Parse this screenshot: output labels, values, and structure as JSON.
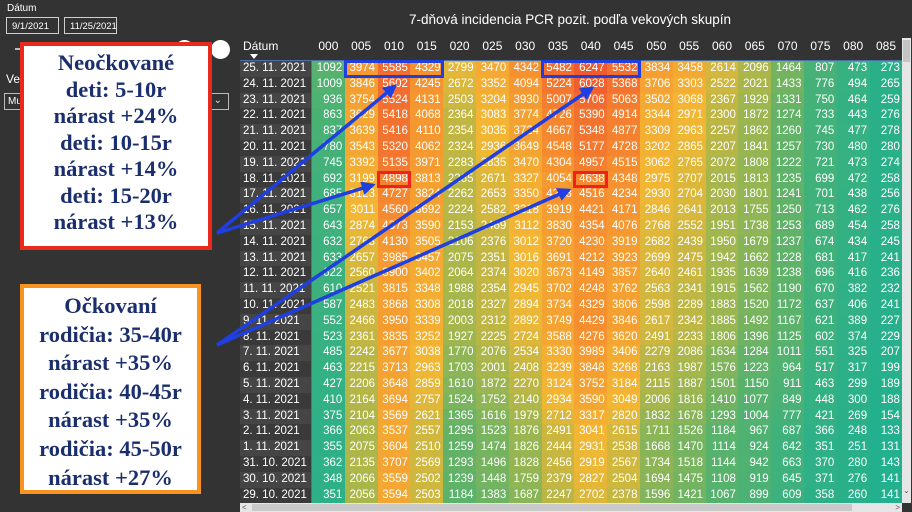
{
  "filters": {
    "date_label": "Dátum",
    "date_from": "9/1/2021",
    "date_to": "11/25/2021",
    "age_label_visible": "Ve",
    "age_dropdown_visible": "Mu"
  },
  "chart_data": {
    "type": "heatmap",
    "title": "7-dňová incidencia PCR pozit. podľa vekových skupín",
    "row_header": "Dátum",
    "columns": [
      "000",
      "005",
      "010",
      "015",
      "020",
      "025",
      "030",
      "035",
      "040",
      "045",
      "050",
      "055",
      "060",
      "065",
      "070",
      "075",
      "080",
      "085"
    ],
    "color_scale": {
      "low": "#22b08e",
      "mid": "#f4b733",
      "high": "#ef5a2e"
    },
    "rows": [
      {
        "date": "25. 11. 2021",
        "values": [
          1092,
          3974,
          5585,
          4329,
          2799,
          3470,
          4342,
          5482,
          6247,
          5532,
          3834,
          3458,
          2614,
          2096,
          1464,
          807,
          473,
          273
        ]
      },
      {
        "date": "24. 11. 2021",
        "values": [
          1009,
          3846,
          5602,
          4245,
          2672,
          3352,
          4094,
          5224,
          6028,
          5368,
          3706,
          3303,
          2522,
          2021,
          1433,
          776,
          494,
          265
        ]
      },
      {
        "date": "23. 11. 2021",
        "values": [
          936,
          3754,
          5524,
          4131,
          2503,
          3204,
          3930,
          5007,
          5706,
          5063,
          3502,
          3068,
          2367,
          1929,
          1331,
          750,
          464,
          259
        ]
      },
      {
        "date": "22. 11. 2021",
        "values": [
          863,
          3629,
          5418,
          4068,
          2364,
          3083,
          3774,
          4726,
          5390,
          4914,
          3344,
          2971,
          2300,
          1872,
          1274,
          733,
          443,
          276
        ]
      },
      {
        "date": "21. 11. 2021",
        "values": [
          837,
          3639,
          5416,
          4110,
          2354,
          3035,
          3724,
          4667,
          5348,
          4877,
          3309,
          2963,
          2257,
          1862,
          1260,
          745,
          477,
          278
        ]
      },
      {
        "date": "20. 11. 2021",
        "values": [
          780,
          3543,
          5320,
          4062,
          2324,
          2936,
          3649,
          4548,
          5177,
          4728,
          3202,
          2865,
          2207,
          1841,
          1257,
          730,
          480,
          280
        ]
      },
      {
        "date": "19. 11. 2021",
        "values": [
          745,
          3392,
          5135,
          3971,
          2283,
          2835,
          3470,
          4304,
          4957,
          4515,
          3062,
          2765,
          2072,
          1808,
          1222,
          721,
          473,
          274
        ]
      },
      {
        "date": "18. 11. 2021",
        "values": [
          692,
          3199,
          4898,
          3813,
          2265,
          2671,
          3327,
          4054,
          4638,
          4348,
          2975,
          2707,
          2015,
          1813,
          1235,
          699,
          472,
          258
        ]
      },
      {
        "date": "17. 11. 2021",
        "values": [
          685,
          3123,
          4727,
          3824,
          2262,
          2653,
          3350,
          4283,
          4516,
          4234,
          2930,
          2704,
          2030,
          1801,
          1241,
          701,
          438,
          256
        ]
      },
      {
        "date": "16. 11. 2021",
        "values": [
          657,
          3011,
          4560,
          3692,
          2224,
          2582,
          3218,
          3919,
          4421,
          4171,
          2846,
          2641,
          2013,
          1755,
          1250,
          713,
          462,
          276
        ]
      },
      {
        "date": "15. 11. 2021",
        "values": [
          643,
          2874,
          4373,
          3590,
          2153,
          2469,
          3112,
          3830,
          4354,
          4076,
          2768,
          2552,
          1951,
          1738,
          1253,
          689,
          454,
          258
        ]
      },
      {
        "date": "14. 11. 2021",
        "values": [
          632,
          2763,
          4130,
          3505,
          2106,
          2376,
          3012,
          3720,
          4230,
          3919,
          2682,
          2439,
          1950,
          1679,
          1237,
          674,
          434,
          245
        ]
      },
      {
        "date": "13. 11. 2021",
        "values": [
          633,
          2657,
          3985,
          3457,
          2075,
          2351,
          3016,
          3691,
          4212,
          3923,
          2699,
          2475,
          1942,
          1662,
          1228,
          681,
          417,
          241
        ]
      },
      {
        "date": "12. 11. 2021",
        "values": [
          622,
          2560,
          3900,
          3402,
          2064,
          2374,
          3020,
          3673,
          4149,
          3857,
          2640,
          2461,
          1935,
          1639,
          1238,
          696,
          416,
          236
        ]
      },
      {
        "date": "11. 11. 2021",
        "values": [
          610,
          2521,
          3815,
          3348,
          1988,
          2354,
          2945,
          3702,
          4248,
          3762,
          2563,
          2341,
          1915,
          1562,
          1190,
          670,
          382,
          232
        ]
      },
      {
        "date": "10. 11. 2021",
        "values": [
          587,
          2483,
          3868,
          3308,
          2018,
          2327,
          2894,
          3734,
          4329,
          3806,
          2598,
          2289,
          1883,
          1520,
          1172,
          637,
          406,
          241
        ]
      },
      {
        "date": "9. 11. 2021",
        "values": [
          552,
          2466,
          3950,
          3339,
          2003,
          2312,
          2892,
          3749,
          4429,
          3846,
          2617,
          2342,
          1885,
          1492,
          1167,
          621,
          389,
          227
        ]
      },
      {
        "date": "8. 11. 2021",
        "values": [
          523,
          2361,
          3835,
          3252,
          1927,
          2225,
          2724,
          3588,
          4276,
          3620,
          2491,
          2233,
          1806,
          1396,
          1125,
          602,
          374,
          229
        ]
      },
      {
        "date": "7. 11. 2021",
        "values": [
          485,
          2242,
          3677,
          3038,
          1770,
          2076,
          2534,
          3330,
          3989,
          3406,
          2279,
          2086,
          1634,
          1284,
          1011,
          551,
          325,
          207
        ]
      },
      {
        "date": "6. 11. 2021",
        "values": [
          463,
          2215,
          3713,
          2963,
          1703,
          2001,
          2408,
          3239,
          3848,
          3268,
          2163,
          1987,
          1576,
          1223,
          964,
          517,
          317,
          199
        ]
      },
      {
        "date": "5. 11. 2021",
        "values": [
          427,
          2206,
          3648,
          2859,
          1610,
          1872,
          2270,
          3124,
          3752,
          3184,
          2115,
          1887,
          1501,
          1150,
          911,
          463,
          299,
          189
        ]
      },
      {
        "date": "4. 11. 2021",
        "values": [
          410,
          2164,
          3694,
          2757,
          1524,
          1752,
          2140,
          2934,
          3590,
          3049,
          2006,
          1816,
          1410,
          1077,
          849,
          448,
          300,
          188
        ]
      },
      {
        "date": "3. 11. 2021",
        "values": [
          375,
          2104,
          3569,
          2621,
          1365,
          1616,
          1979,
          2712,
          3317,
          2820,
          1832,
          1678,
          1293,
          1004,
          777,
          421,
          269,
          154
        ]
      },
      {
        "date": "2. 11. 2021",
        "values": [
          366,
          2063,
          3537,
          2557,
          1295,
          1523,
          1876,
          2491,
          3041,
          2615,
          1711,
          1526,
          1184,
          967,
          687,
          366,
          248,
          133
        ]
      },
      {
        "date": "1. 11. 2021",
        "values": [
          355,
          2075,
          3604,
          2510,
          1259,
          1474,
          1826,
          2444,
          2931,
          2538,
          1668,
          1470,
          1114,
          924,
          642,
          351,
          251,
          131
        ]
      },
      {
        "date": "31. 10. 2021",
        "values": [
          362,
          2135,
          3707,
          2569,
          1293,
          1496,
          1828,
          2456,
          2919,
          2567,
          1734,
          1518,
          1144,
          942,
          663,
          370,
          280,
          143
        ]
      },
      {
        "date": "30. 10. 2021",
        "values": [
          348,
          2066,
          3559,
          2502,
          1239,
          1448,
          1759,
          2379,
          2827,
          2504,
          1694,
          1475,
          1108,
          919,
          645,
          371,
          276,
          141
        ]
      },
      {
        "date": "29. 10. 2021",
        "values": [
          351,
          2056,
          3594,
          2503,
          1184,
          1383,
          1687,
          2247,
          2702,
          2378,
          1596,
          1421,
          1067,
          899,
          609,
          358,
          260,
          141
        ]
      }
    ],
    "highlights": [
      {
        "row": 0,
        "col_from": 1,
        "col_to": 3,
        "color": "#1f3fe0"
      },
      {
        "row": 0,
        "col_from": 7,
        "col_to": 9,
        "color": "#1f3fe0"
      },
      {
        "row": 7,
        "col_from": 2,
        "col_to": 2,
        "color": "#f0231a"
      },
      {
        "row": 7,
        "col_from": 8,
        "col_to": 8,
        "color": "#f0231a"
      }
    ]
  },
  "annotations": {
    "unvaccinated_lines": [
      "Neočkované",
      "deti: 5-10r",
      "nárast +24%",
      "deti: 10-15r",
      "nárast +14%",
      "deti: 15-20r",
      "nárast +13%"
    ],
    "vaccinated_lines": [
      "Očkovaní",
      "rodičia: 35-40r",
      "nárast +35%",
      "rodičia: 40-45r",
      "nárast +35%",
      "rodičia: 45-50r",
      "nárast +27%"
    ],
    "arrow_color": "#1f3fe0"
  }
}
